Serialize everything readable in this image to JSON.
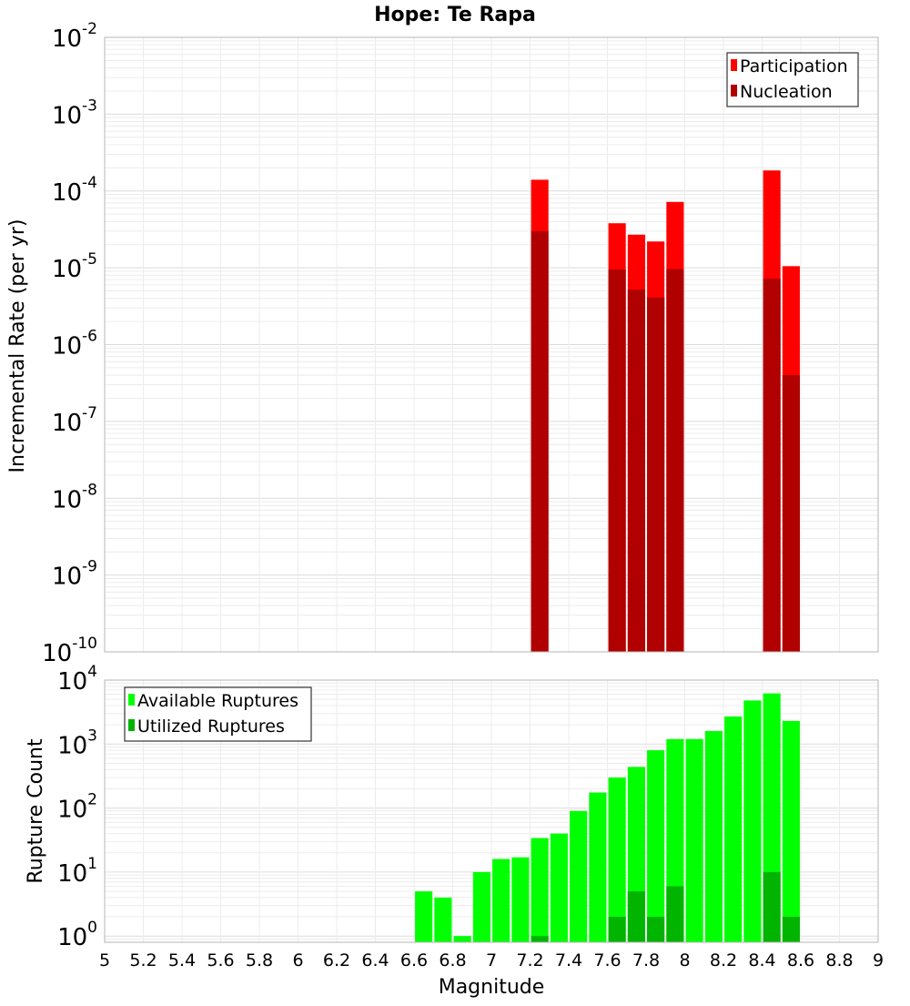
{
  "chart_data": [
    {
      "type": "bar",
      "panel": "top",
      "title": "Hope: Te Rapa",
      "ylabel": "Incremental Rate (per yr)",
      "xlabel": "",
      "yscale": "log",
      "ylim": [
        1e-10,
        0.01
      ],
      "xlim": [
        5,
        9
      ],
      "grid": true,
      "legend_position": "top-right",
      "x": [
        7.25,
        7.65,
        7.75,
        7.85,
        7.95,
        8.45,
        8.55
      ],
      "series": [
        {
          "name": "Participation",
          "color": "#ff0000",
          "values": [
            0.00014,
            3.8e-05,
            2.7e-05,
            2.2e-05,
            7.2e-05,
            0.000185,
            1.05e-05
          ]
        },
        {
          "name": "Nucleation",
          "color": "#b00000",
          "values": [
            3e-05,
            9.5e-06,
            5.2e-06,
            4.1e-06,
            9.6e-06,
            7.2e-06,
            4e-07
          ]
        }
      ],
      "yticks": [
        {
          "base": "10",
          "exp": "-10"
        },
        {
          "base": "10",
          "exp": "-9"
        },
        {
          "base": "10",
          "exp": "-8"
        },
        {
          "base": "10",
          "exp": "-7"
        },
        {
          "base": "10",
          "exp": "-6"
        },
        {
          "base": "10",
          "exp": "-5"
        },
        {
          "base": "10",
          "exp": "-4"
        },
        {
          "base": "10",
          "exp": "-3"
        },
        {
          "base": "10",
          "exp": "-2"
        }
      ]
    },
    {
      "type": "bar",
      "panel": "bottom",
      "title": "",
      "ylabel": "Rupture Count",
      "xlabel": "Magnitude",
      "yscale": "log",
      "ylim": [
        0.8,
        10000
      ],
      "xlim": [
        5,
        9
      ],
      "grid": true,
      "legend_position": "top-left",
      "x": [
        6.65,
        6.75,
        6.85,
        6.95,
        7.05,
        7.15,
        7.25,
        7.35,
        7.45,
        7.55,
        7.65,
        7.75,
        7.85,
        7.95,
        8.05,
        8.15,
        8.25,
        8.35,
        8.45,
        8.55
      ],
      "series": [
        {
          "name": "Available Ruptures",
          "color": "#00ff00",
          "values": [
            5,
            4,
            1,
            10,
            16,
            17,
            34,
            40,
            90,
            175,
            300,
            440,
            800,
            1200,
            1200,
            1600,
            2700,
            4800,
            6200,
            2300
          ]
        },
        {
          "name": "Utilized Ruptures",
          "color": "#00b400",
          "values": [
            0,
            0,
            0,
            0,
            0,
            0,
            1,
            0,
            0,
            0,
            2,
            5,
            2,
            6,
            0,
            0,
            0,
            0,
            10,
            2
          ]
        }
      ],
      "yticks": [
        {
          "base": "10",
          "exp": "0"
        },
        {
          "base": "10",
          "exp": "1"
        },
        {
          "base": "10",
          "exp": "2"
        },
        {
          "base": "10",
          "exp": "3"
        },
        {
          "base": "10",
          "exp": "4"
        }
      ],
      "xticks": [
        "5",
        "5.2",
        "5.4",
        "5.6",
        "5.8",
        "6",
        "6.2",
        "6.4",
        "6.6",
        "6.8",
        "7",
        "7.2",
        "7.4",
        "7.6",
        "7.8",
        "8",
        "8.2",
        "8.4",
        "8.6",
        "8.8",
        "9"
      ]
    }
  ],
  "bar_width_mag": 0.09
}
